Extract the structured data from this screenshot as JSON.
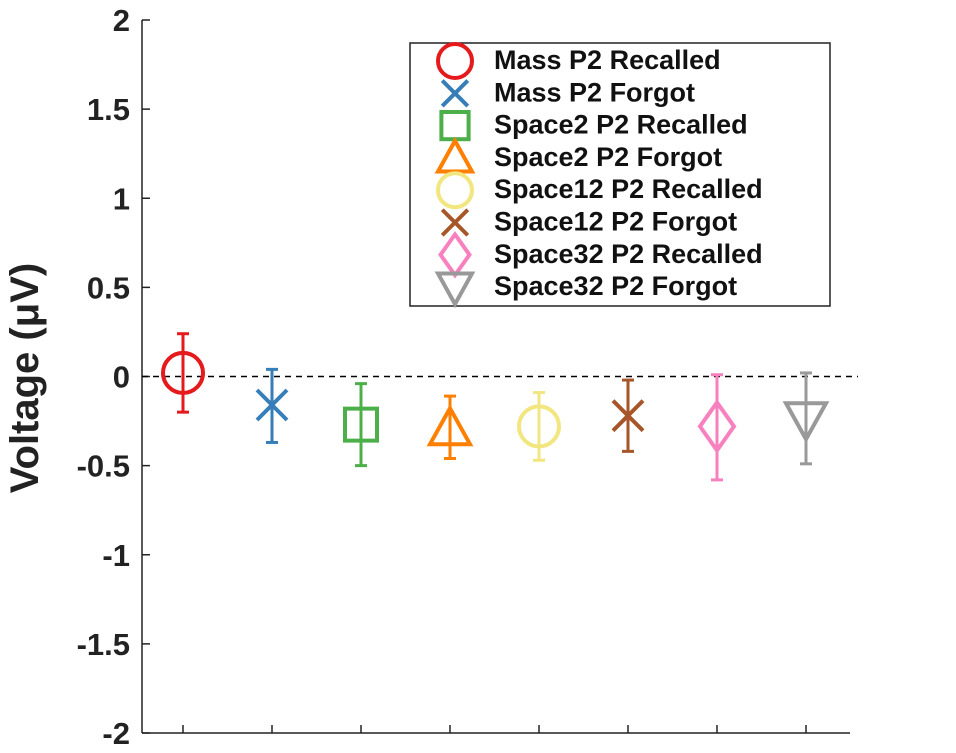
{
  "chart_data": {
    "type": "scatter",
    "title": "",
    "xlabel": "",
    "ylabel": "Voltage (μV)",
    "ylim": [
      -2,
      2
    ],
    "yticks": [
      -2,
      -1.5,
      -1,
      -0.5,
      0,
      0.5,
      1,
      1.5,
      2
    ],
    "ytick_labels": [
      "-2",
      "-1.5",
      "-1",
      "-0.5",
      "0",
      "0.5",
      "1",
      "1.5",
      "2"
    ],
    "xticks_count": 8,
    "grid": false,
    "reference_line": {
      "y": 0,
      "style": "dashed",
      "color": "#000000"
    },
    "legend_position": "top-right",
    "series": [
      {
        "name": "Mass P2 Recalled",
        "x": 1,
        "y": 0.02,
        "err_low": -0.2,
        "err_high": 0.24,
        "marker": "circle",
        "color": "#e41a1c"
      },
      {
        "name": "Mass P2 Forgot",
        "x": 2,
        "y": -0.16,
        "err_low": -0.37,
        "err_high": 0.04,
        "marker": "x",
        "color": "#377eb8"
      },
      {
        "name": "Space2 P2 Recalled",
        "x": 3,
        "y": -0.27,
        "err_low": -0.5,
        "err_high": -0.04,
        "marker": "square",
        "color": "#4daf4a"
      },
      {
        "name": "Space2 P2 Forgot",
        "x": 4,
        "y": -0.29,
        "err_low": -0.46,
        "err_high": -0.11,
        "marker": "triangle-up",
        "color": "#ff7f00"
      },
      {
        "name": "Space12 P2 Recalled",
        "x": 5,
        "y": -0.28,
        "err_low": -0.47,
        "err_high": -0.09,
        "marker": "circle",
        "color": "#f2e680"
      },
      {
        "name": "Space12 P2 Forgot",
        "x": 6,
        "y": -0.22,
        "err_low": -0.42,
        "err_high": -0.02,
        "marker": "x",
        "color": "#a65628"
      },
      {
        "name": "Space32 P2 Recalled",
        "x": 7,
        "y": -0.28,
        "err_low": -0.58,
        "err_high": 0.01,
        "marker": "diamond",
        "color": "#f781bf"
      },
      {
        "name": "Space32 P2 Forgot",
        "x": 8,
        "y": -0.24,
        "err_low": -0.49,
        "err_high": 0.02,
        "marker": "triangle-down",
        "color": "#999999"
      }
    ]
  }
}
